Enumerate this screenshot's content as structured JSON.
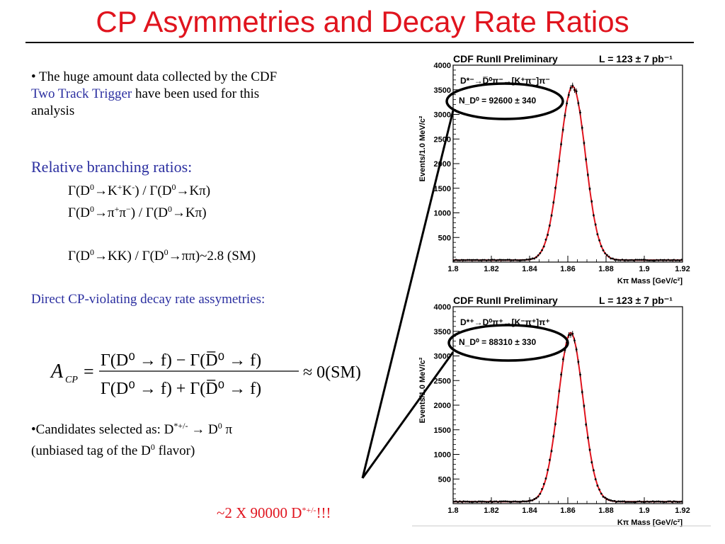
{
  "slide": {
    "title": "CP Asymmetries and Decay Rate Ratios",
    "bullet1": {
      "lead": "• The huge amount data collected by the CDF",
      "highlight": "Two Track Trigger",
      "rest": "have been used for this",
      "end": "analysis"
    },
    "ratios_heading": "Relative branching ratios:",
    "ratio_lines": [
      {
        "a": "Γ(D",
        "b": "0",
        "c": "→K",
        "d": "+",
        "e": "K",
        "f": "-",
        "g": ") / Γ(D",
        "h": "0",
        "i": "→Kπ)"
      },
      {
        "a": "Γ(D",
        "b": "0",
        "c": "→π",
        "d": "+",
        "e": "π",
        "f": "−",
        "g": ") / Γ(D",
        "h": "0",
        "i": "→Kπ)"
      },
      {
        "a": "Γ(D",
        "b": "0",
        "c": "→KK) / Γ(D",
        "d": "0",
        "e": "→ππ)~2.8 (SM)"
      }
    ],
    "asym_heading": "Direct CP-violating decay rate assymetries:",
    "formula": {
      "lhs": "A",
      "lhs_sub": "CP",
      "equals": "=",
      "numerator": "Γ(D⁰ → f) − Γ(D̅⁰ → f)",
      "denominator": "Γ(D⁰ → f) + Γ(D̅⁰ → f)",
      "rhs": "≈ 0(SM)"
    },
    "bullet2": {
      "line1_a": "•Candidates selected as: D",
      "line1_sup": "*+/-",
      "line1_b": " → D",
      "line1_sup2": "0",
      "line1_c": " π",
      "line2_a": "(unbiased tag of the D",
      "line2_sup": "0",
      "line2_b": " flavor)"
    },
    "footer": {
      "a": "~2 X 90000 D",
      "sup": "*+/-",
      "b": "!!!"
    }
  },
  "colors": {
    "title": "#e0141e",
    "accent_blue": "#2b2fa0",
    "fit": "#e0141e",
    "points": "#000000"
  },
  "chart_data": [
    {
      "type": "scatter",
      "title": "CDF RunII Preliminary",
      "luminosity": "L = 123 ± 7 pb⁻¹",
      "decay_label": "D*⁻→D̅⁰π⁻→[K⁺π⁻]π⁻",
      "yield_label": "N_D⁰ = 92600 ± 340",
      "xlabel": "Kπ Mass [GeV/c²]",
      "ylabel": "Events/1.0 MeV/c²",
      "xlim": [
        1.8,
        1.92
      ],
      "ylim": [
        0,
        4000
      ],
      "xticks": [
        "1.8",
        "1.82",
        "1.84",
        "1.86",
        "1.88",
        "1.9",
        "1.92"
      ],
      "yticks": [
        "500",
        "1000",
        "1500",
        "2000",
        "2500",
        "3000",
        "3500",
        "4000"
      ],
      "peak": {
        "mean": 1.8625,
        "sigma": 0.0067,
        "amplitude": 3530,
        "background": 40
      },
      "series": [
        {
          "values_desc": "data points with Gaussian fit"
        }
      ]
    },
    {
      "type": "scatter",
      "title": "CDF RunII Preliminary",
      "luminosity": "L = 123 ± 7 pb⁻¹",
      "decay_label": "D*⁺→D⁰π⁺→[K⁻π⁺]π⁺",
      "yield_label": "N_D⁰ = 88310 ± 330",
      "xlabel": "Kπ Mass [GeV/c²]",
      "ylabel": "Events/1.0 MeV/c²",
      "xlim": [
        1.8,
        1.92
      ],
      "ylim": [
        0,
        4000
      ],
      "xticks": [
        "1.8",
        "1.82",
        "1.84",
        "1.86",
        "1.88",
        "1.9",
        "1.92"
      ],
      "yticks": [
        "500",
        "1000",
        "1500",
        "2000",
        "2500",
        "3000",
        "3500",
        "4000"
      ],
      "peak": {
        "mean": 1.8615,
        "sigma": 0.0065,
        "amplitude": 3430,
        "background": 40
      },
      "series": [
        {
          "values_desc": "data points with Gaussian fit"
        }
      ]
    }
  ]
}
